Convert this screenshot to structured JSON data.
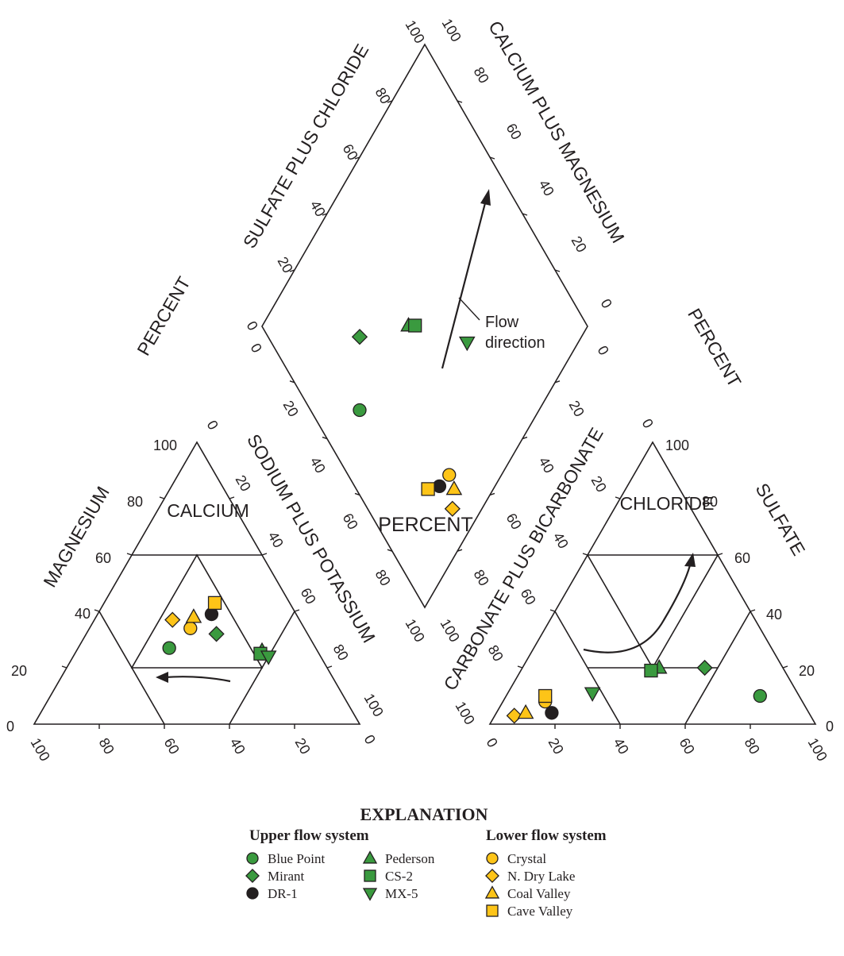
{
  "axis_titles": {
    "sulfate_chloride": "SULFATE PLUS CHLORIDE",
    "calcium_magnesium": "CALCIUM PLUS MAGNESIUM",
    "sodium_potassium": "SODIUM PLUS POTASSIUM",
    "carbonate_bicarbonate": "CARBONATE PLUS BICARBONATE",
    "magnesium": "MAGNESIUM",
    "sulfate": "SULFATE",
    "calcium": "CALCIUM",
    "chloride": "CHLORIDE",
    "percent": "PERCENT"
  },
  "ticks": {
    "left_tri_magnesium": [
      "0",
      "20",
      "40",
      "60",
      "80",
      "100"
    ],
    "left_tri_calcium": [
      "100",
      "80",
      "60",
      "40",
      "20",
      "0"
    ],
    "left_tri_sodium": [
      "0",
      "20",
      "40",
      "60",
      "80",
      "100"
    ],
    "right_tri_carbonate": [
      "100",
      "80",
      "60",
      "40",
      "20",
      "0"
    ],
    "right_tri_chloride": [
      "0",
      "20",
      "40",
      "60",
      "80",
      "100"
    ],
    "right_tri_sulfate": [
      "0",
      "20",
      "40",
      "60",
      "80",
      "100"
    ],
    "diamond_sulfate_chloride": [
      "0",
      "20",
      "40",
      "60",
      "80",
      "100"
    ],
    "diamond_calcium_magnesium": [
      "100",
      "80",
      "60",
      "40",
      "20",
      "0"
    ],
    "diamond_lower_left": [
      "0",
      "20",
      "40",
      "60",
      "80",
      "100"
    ],
    "diamond_lower_right": [
      "100",
      "80",
      "60",
      "40",
      "20",
      "0"
    ]
  },
  "annotations": {
    "flow_direction_line1": "Flow",
    "flow_direction_line2": "direction"
  },
  "legend": {
    "title": "EXPLANATION",
    "upper_title": "Upper flow system",
    "lower_title": "Lower flow system",
    "upper_items": [
      {
        "label": "Blue Point",
        "shape": "circle",
        "color": "#3a9a3f"
      },
      {
        "label": "Mirant",
        "shape": "diamond",
        "color": "#3a9a3f"
      },
      {
        "label": "DR-1",
        "shape": "circle",
        "color": "#231f20"
      },
      {
        "label": "Pederson",
        "shape": "triangle-up",
        "color": "#3a9a3f"
      },
      {
        "label": "CS-2",
        "shape": "square",
        "color": "#3a9a3f"
      },
      {
        "label": "MX-5",
        "shape": "triangle-down",
        "color": "#3a9a3f"
      }
    ],
    "lower_items": [
      {
        "label": "Crystal",
        "shape": "circle",
        "color": "#fdc418"
      },
      {
        "label": "N. Dry Lake",
        "shape": "diamond",
        "color": "#fdc418"
      },
      {
        "label": "Coal Valley",
        "shape": "triangle-up",
        "color": "#fdc418"
      },
      {
        "label": "Cave Valley",
        "shape": "square",
        "color": "#fdc418"
      }
    ]
  },
  "colors": {
    "green": "#3a9a3f",
    "yellow": "#fdc418",
    "black": "#231f20"
  },
  "samples": [
    {
      "site": "Blue Point",
      "shape": "circle",
      "color": "#3a9a3f",
      "cation": [
        27,
        28
      ],
      "anion": [
        78,
        12
      ],
      "diamond": [
        55,
        15
      ]
    },
    {
      "site": "Mirant",
      "shape": "diamond",
      "color": "#3a9a3f",
      "cation": [
        32,
        40
      ],
      "anion": [
        56,
        24
      ],
      "diamond": [
        68,
        28
      ]
    },
    {
      "site": "DR-1",
      "shape": "circle",
      "color": "#231f20",
      "cation": [
        39,
        35
      ],
      "anion": [
        17,
        79
      ],
      "diamond": [
        17,
        26
      ]
    },
    {
      "site": "Pederson",
      "shape": "triangle-up",
      "color": "#3a9a3f",
      "cation": [
        26,
        57
      ],
      "anion": [
        42,
        38
      ],
      "diamond": [
        55,
        45
      ]
    },
    {
      "site": "CS-2",
      "shape": "square",
      "color": "#3a9a3f",
      "cation": [
        25,
        57
      ],
      "anion": [
        40,
        41
      ],
      "diamond": [
        53,
        47
      ]
    },
    {
      "site": "MX-5",
      "shape": "triangle-down",
      "color": "#3a9a3f",
      "cation": [
        24,
        60
      ],
      "anion": [
        26,
        63
      ],
      "diamond": [
        34,
        60
      ]
    },
    {
      "site": "Crystal",
      "shape": "circle",
      "color": "#fdc418",
      "cation": [
        34,
        31
      ],
      "anion": [
        13,
        79
      ],
      "diamond": [
        16,
        31
      ]
    },
    {
      "site": "N. Dry Lake",
      "shape": "diamond",
      "color": "#fdc418",
      "cation": [
        37,
        24
      ],
      "anion": [
        6,
        91
      ],
      "diamond": [
        9,
        26
      ]
    },
    {
      "site": "Coal Valley",
      "shape": "triangle-up",
      "color": "#fdc418",
      "cation": [
        38,
        30
      ],
      "anion": [
        9,
        87
      ],
      "diamond": [
        12,
        30
      ]
    },
    {
      "site": "Cave Valley",
      "shape": "square",
      "color": "#fdc418",
      "cation": [
        43,
        34
      ],
      "anion": [
        12,
        78
      ],
      "diamond": [
        20,
        22
      ]
    }
  ]
}
